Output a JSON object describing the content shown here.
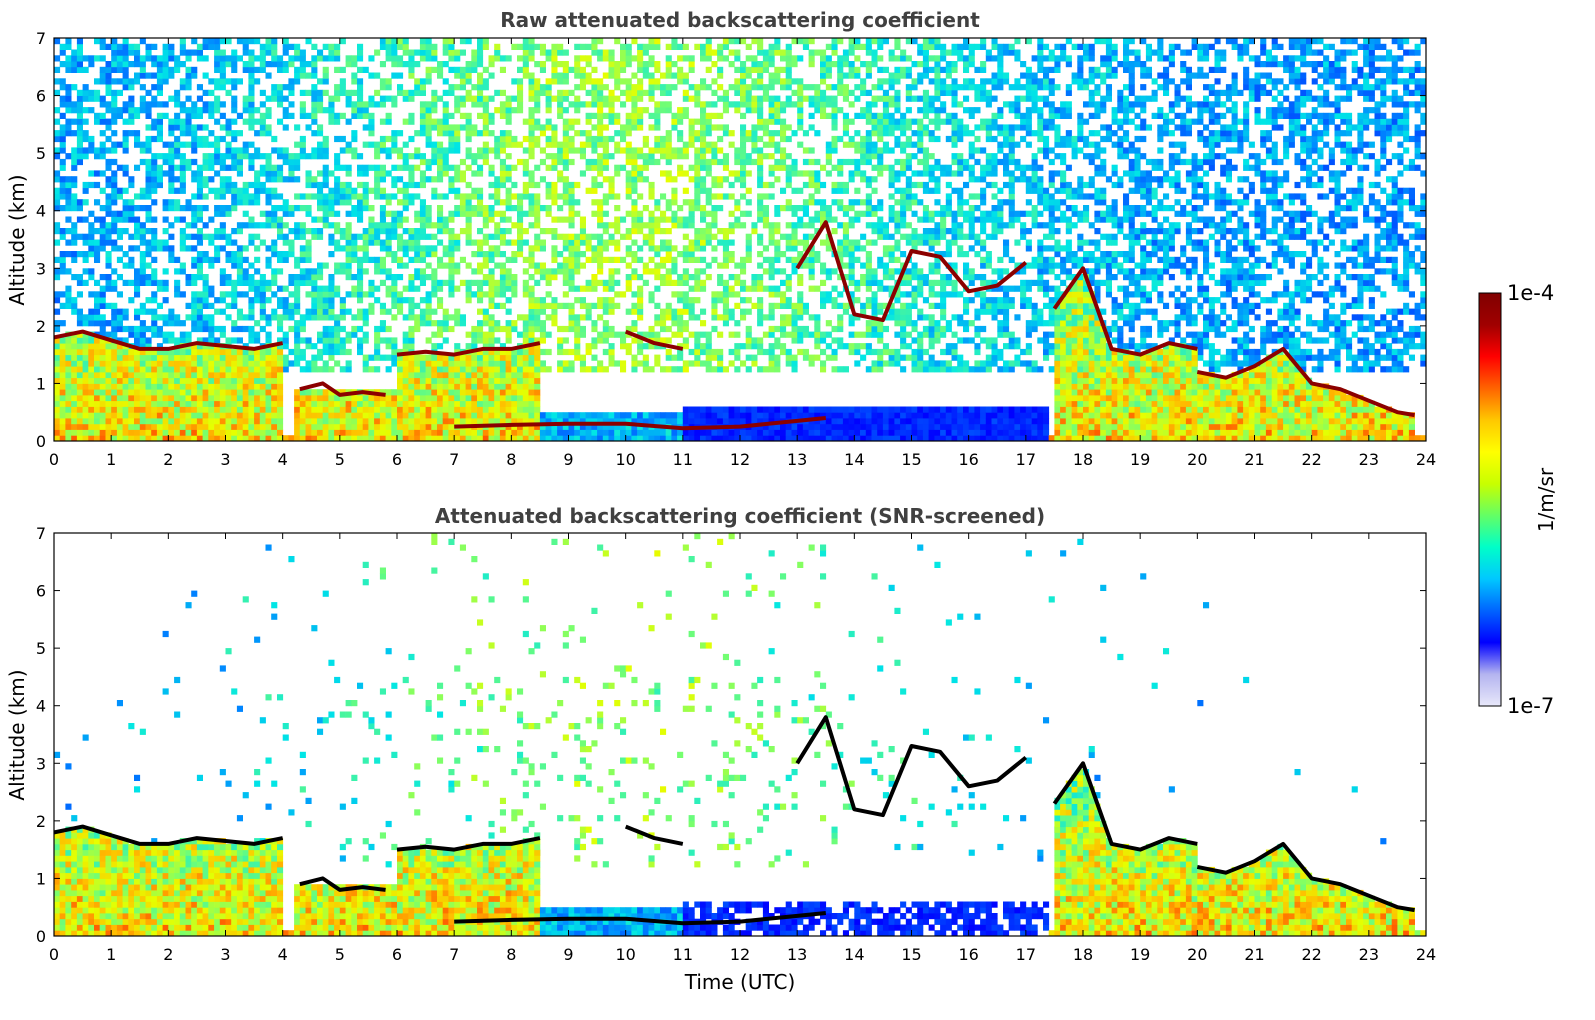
{
  "chart_data": [
    {
      "type": "heatmap",
      "title": "Raw attenuated backscattering coefficient",
      "xlabel": "",
      "ylabel": "Altitude (km)",
      "x_ticks": [
        "0",
        "1",
        "2",
        "3",
        "4",
        "5",
        "6",
        "7",
        "8",
        "9",
        "10",
        "11",
        "12",
        "13",
        "14",
        "15",
        "16",
        "17",
        "18",
        "19",
        "20",
        "21",
        "22",
        "23",
        "24"
      ],
      "y_ticks": [
        "0",
        "1",
        "2",
        "3",
        "4",
        "5",
        "6",
        "7"
      ],
      "xlim": [
        0,
        24
      ],
      "ylim": [
        0,
        7
      ],
      "colorscale": "jet",
      "screened": false,
      "cloud_layers": [
        {
          "x": [
            0.0,
            0.5,
            1.0,
            1.5,
            2.0,
            2.5,
            3.0,
            3.5,
            4.0
          ],
          "y": [
            1.8,
            1.9,
            1.75,
            1.6,
            1.6,
            1.7,
            1.65,
            1.6,
            1.7
          ]
        },
        {
          "x": [
            4.3,
            4.7,
            5.0,
            5.4,
            5.8
          ],
          "y": [
            0.9,
            1.0,
            0.8,
            0.85,
            0.8
          ]
        },
        {
          "x": [
            6.0,
            6.5,
            7.0,
            7.5,
            8.0,
            8.5
          ],
          "y": [
            1.5,
            1.55,
            1.5,
            1.6,
            1.6,
            1.7
          ]
        },
        {
          "x": [
            7.0,
            8.0,
            9.0,
            10.0,
            11.0,
            12.0,
            13.0,
            13.5
          ],
          "y": [
            0.25,
            0.28,
            0.3,
            0.3,
            0.22,
            0.25,
            0.35,
            0.4
          ]
        },
        {
          "x": [
            10.0,
            10.5,
            11.0
          ],
          "y": [
            1.9,
            1.7,
            1.6
          ]
        },
        {
          "x": [
            13.0,
            13.5,
            14.0,
            14.5,
            15.0,
            15.5,
            16.0,
            16.5,
            17.0
          ],
          "y": [
            3.0,
            3.8,
            2.2,
            2.1,
            3.3,
            3.2,
            2.6,
            2.7,
            3.1
          ]
        },
        {
          "x": [
            17.5,
            18.0,
            18.5,
            19.0,
            19.5,
            20.0
          ],
          "y": [
            2.3,
            3.0,
            1.6,
            1.5,
            1.7,
            1.6
          ]
        },
        {
          "x": [
            20.0,
            20.5,
            21.0,
            21.5,
            22.0,
            22.5,
            23.0,
            23.5,
            23.8
          ],
          "y": [
            1.2,
            1.1,
            1.3,
            1.6,
            1.0,
            0.9,
            0.7,
            0.5,
            0.45
          ]
        }
      ]
    },
    {
      "type": "heatmap",
      "title": "Attenuated backscattering coefficient (SNR-screened)",
      "xlabel": "Time (UTC)",
      "ylabel": "Altitude (km)",
      "x_ticks": [
        "0",
        "1",
        "2",
        "3",
        "4",
        "5",
        "6",
        "7",
        "8",
        "9",
        "10",
        "11",
        "12",
        "13",
        "14",
        "15",
        "16",
        "17",
        "18",
        "19",
        "20",
        "21",
        "22",
        "23",
        "24"
      ],
      "y_ticks": [
        "0",
        "1",
        "2",
        "3",
        "4",
        "5",
        "6",
        "7"
      ],
      "xlim": [
        0,
        24
      ],
      "ylim": [
        0,
        7
      ],
      "colorscale": "jet",
      "screened": true,
      "cloud_layers": [
        {
          "x": [
            0.0,
            0.5,
            1.0,
            1.5,
            2.0,
            2.5,
            3.0,
            3.5,
            4.0
          ],
          "y": [
            1.8,
            1.9,
            1.75,
            1.6,
            1.6,
            1.7,
            1.65,
            1.6,
            1.7
          ]
        },
        {
          "x": [
            4.3,
            4.7,
            5.0,
            5.4,
            5.8
          ],
          "y": [
            0.9,
            1.0,
            0.8,
            0.85,
            0.8
          ]
        },
        {
          "x": [
            6.0,
            6.5,
            7.0,
            7.5,
            8.0,
            8.5
          ],
          "y": [
            1.5,
            1.55,
            1.5,
            1.6,
            1.6,
            1.7
          ]
        },
        {
          "x": [
            7.0,
            8.0,
            9.0,
            10.0,
            11.0,
            12.0,
            13.0,
            13.5
          ],
          "y": [
            0.25,
            0.28,
            0.3,
            0.3,
            0.22,
            0.25,
            0.35,
            0.4
          ]
        },
        {
          "x": [
            10.0,
            10.5,
            11.0
          ],
          "y": [
            1.9,
            1.7,
            1.6
          ]
        },
        {
          "x": [
            13.0,
            13.5,
            14.0,
            14.5,
            15.0,
            15.5,
            16.0,
            16.5,
            17.0
          ],
          "y": [
            3.0,
            3.8,
            2.2,
            2.1,
            3.3,
            3.2,
            2.6,
            2.7,
            3.1
          ]
        },
        {
          "x": [
            17.5,
            18.0,
            18.5,
            19.0,
            19.5,
            20.0
          ],
          "y": [
            2.3,
            3.0,
            1.6,
            1.5,
            1.7,
            1.6
          ]
        },
        {
          "x": [
            20.0,
            20.5,
            21.0,
            21.5,
            22.0,
            22.5,
            23.0,
            23.5,
            23.8
          ],
          "y": [
            1.2,
            1.1,
            1.3,
            1.6,
            1.0,
            0.9,
            0.7,
            0.5,
            0.45
          ]
        }
      ]
    }
  ],
  "colorbar": {
    "label": "1/m/sr",
    "max_label": "1e-4",
    "min_label": "1e-7",
    "colors": [
      "#e8e8fa",
      "#b4b4f0",
      "#0000ff",
      "#0064ff",
      "#00c8ff",
      "#00ffc8",
      "#64ff64",
      "#c8ff00",
      "#ffff00",
      "#ffc800",
      "#ff6400",
      "#ff0000",
      "#a00000",
      "#800000"
    ]
  }
}
